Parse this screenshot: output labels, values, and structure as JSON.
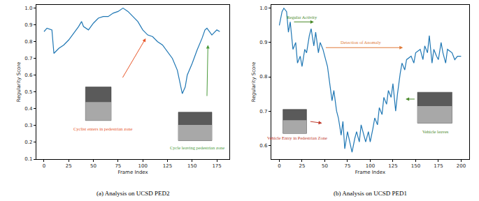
{
  "chart_data": [
    {
      "type": "line",
      "caption": "(a) Analysis on UCSD PED2",
      "xlabel": "Frame Index",
      "ylabel": "Regularity Score",
      "color": "#1f77b4",
      "x": [
        0,
        3,
        8,
        10,
        15,
        20,
        25,
        30,
        35,
        38,
        40,
        45,
        50,
        55,
        60,
        65,
        70,
        75,
        80,
        85,
        90,
        95,
        100,
        105,
        110,
        115,
        120,
        125,
        130,
        135,
        138,
        140,
        143,
        145,
        150,
        155,
        160,
        163,
        165,
        170,
        175,
        178
      ],
      "values": [
        0.86,
        0.88,
        0.87,
        0.73,
        0.76,
        0.78,
        0.81,
        0.85,
        0.89,
        0.92,
        0.89,
        0.87,
        0.91,
        0.94,
        0.95,
        0.95,
        0.97,
        0.98,
        1.0,
        0.98,
        0.95,
        0.92,
        0.87,
        0.84,
        0.83,
        0.8,
        0.78,
        0.74,
        0.7,
        0.63,
        0.55,
        0.49,
        0.53,
        0.6,
        0.67,
        0.75,
        0.82,
        0.87,
        0.88,
        0.84,
        0.87,
        0.86
      ],
      "xlim": [
        -8,
        188
      ],
      "xticks": [
        0,
        25,
        50,
        75,
        100,
        125,
        150,
        175
      ],
      "ylim": [
        0.1,
        1.02
      ],
      "yticks": [
        0.1,
        0.2,
        0.3,
        0.4,
        0.5,
        0.6,
        0.7,
        0.8,
        0.9,
        {
          "value": 1,
          "label": "1.0"
        }
      ],
      "annotations": [
        {
          "text": "Cyclist enters in pedestrian zone",
          "color": "#e8572a"
        },
        {
          "text": "Cycle leaving pedestrian zone",
          "color": "#4a9a3a"
        }
      ]
    },
    {
      "type": "line",
      "caption": "(b) Analysis on UCSD PED1",
      "xlabel": "Frame Index",
      "ylabel": "Regularity Score",
      "color": "#1f77b4",
      "x": [
        0,
        3,
        5,
        8,
        10,
        12,
        15,
        18,
        20,
        23,
        25,
        28,
        30,
        33,
        35,
        38,
        40,
        43,
        45,
        48,
        50,
        53,
        55,
        58,
        60,
        63,
        65,
        68,
        70,
        72,
        75,
        78,
        80,
        83,
        85,
        88,
        90,
        93,
        95,
        98,
        100,
        103,
        105,
        108,
        110,
        113,
        115,
        118,
        120,
        123,
        125,
        128,
        130,
        133,
        135,
        138,
        140,
        145,
        148,
        150,
        155,
        158,
        160,
        163,
        165,
        168,
        170,
        173,
        175,
        178,
        180,
        183,
        185,
        190,
        193,
        196,
        200
      ],
      "values": [
        0.95,
        0.99,
        1.0,
        0.99,
        0.93,
        0.96,
        0.88,
        0.9,
        0.84,
        0.86,
        0.83,
        0.88,
        0.87,
        0.92,
        0.94,
        0.89,
        0.93,
        0.87,
        0.9,
        0.88,
        0.86,
        0.83,
        0.79,
        0.73,
        0.76,
        0.7,
        0.68,
        0.63,
        0.67,
        0.59,
        0.64,
        0.6,
        0.58,
        0.62,
        0.64,
        0.61,
        0.66,
        0.63,
        0.61,
        0.64,
        0.61,
        0.65,
        0.68,
        0.66,
        0.71,
        0.69,
        0.74,
        0.72,
        0.76,
        0.74,
        0.78,
        0.7,
        0.75,
        0.81,
        0.84,
        0.82,
        0.85,
        0.86,
        0.84,
        0.87,
        0.88,
        0.85,
        0.89,
        0.87,
        0.92,
        0.84,
        0.88,
        0.86,
        0.85,
        0.9,
        0.87,
        0.84,
        0.88,
        0.87,
        0.85,
        0.86,
        0.86
      ],
      "xlim": [
        -9,
        209
      ],
      "xticks": [
        0,
        25,
        50,
        75,
        100,
        125,
        150,
        175,
        200
      ],
      "ylim": [
        0.56,
        1.01
      ],
      "yticks": [
        0.6,
        0.7,
        0.8,
        0.9,
        {
          "value": 1,
          "label": "1.0"
        }
      ],
      "annotations": [
        {
          "text": "Regular Activity",
          "color": "#4a8a2a"
        },
        {
          "text": "Detection of Anomaly",
          "color": "#e07b39"
        },
        {
          "text": "Vehicle Entry in Pedestrian Zone",
          "color": "#c0392b"
        },
        {
          "text": "Vehicle leaves",
          "color": "#4a8a2a"
        }
      ]
    }
  ]
}
